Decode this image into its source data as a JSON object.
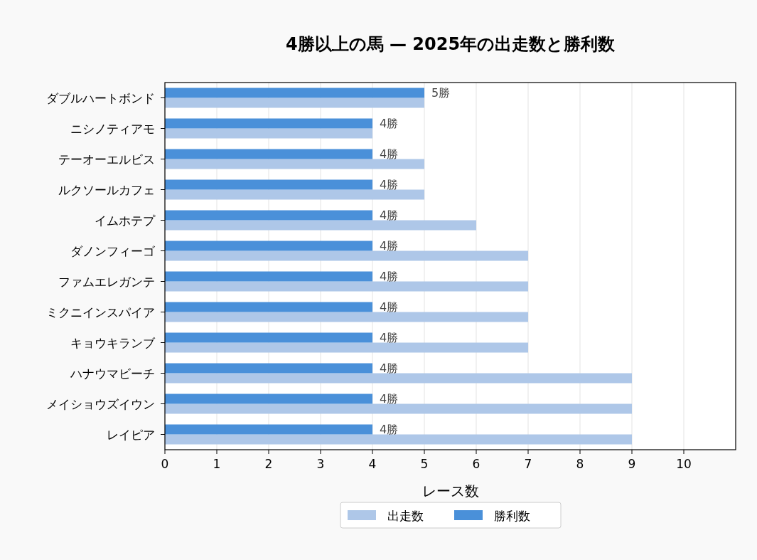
{
  "chart_data": {
    "type": "bar",
    "orientation": "horizontal",
    "title": "4勝以上の馬 — 2025年の出走数と勝利数",
    "xlabel": "レース数",
    "categories": [
      "ダブルハートボンド",
      "ニシノティアモ",
      "テーオーエルビス",
      "ルクソールカフェ",
      "イムホテプ",
      "ダノンフィーゴ",
      "ファムエレガンテ",
      "ミクニインスパイア",
      "キョウキランブ",
      "ハナウマビーチ",
      "メイショウズイウン",
      "レイピア"
    ],
    "series": [
      {
        "name": "出走数",
        "color": "#aec7e8",
        "values": [
          5,
          4,
          5,
          5,
          6,
          7,
          7,
          7,
          7,
          9,
          9,
          9
        ]
      },
      {
        "name": "勝利数",
        "color": "#4a90d9",
        "values": [
          5,
          4,
          4,
          4,
          4,
          4,
          4,
          4,
          4,
          4,
          4,
          4
        ],
        "value_labels": [
          "5勝",
          "4勝",
          "4勝",
          "4勝",
          "4勝",
          "4勝",
          "4勝",
          "4勝",
          "4勝",
          "4勝",
          "4勝",
          "4勝"
        ]
      }
    ],
    "xlim": [
      0,
      11
    ],
    "xticks": [
      0,
      1,
      2,
      3,
      4,
      5,
      6,
      7,
      8,
      9,
      10
    ],
    "grid": "x",
    "legend": "bottom"
  }
}
